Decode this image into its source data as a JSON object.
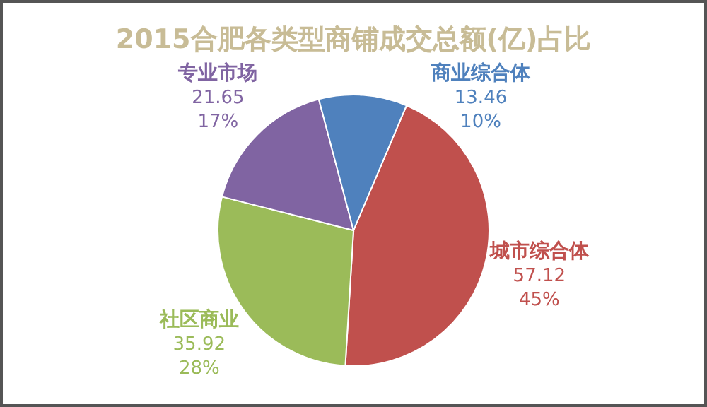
{
  "chart_data": {
    "type": "pie",
    "title": "2015合肥各类型商铺成交总额(亿)占比",
    "categories": [
      "城市综合体",
      "社区商业",
      "专业市场",
      "商业综合体"
    ],
    "values": [
      57.12,
      35.92,
      21.65,
      13.46
    ],
    "value_labels": [
      "57.12\n45%",
      "35.92\n28%",
      "21.65\n17%",
      "13.46\n10%"
    ],
    "colors": [
      "#c0504d",
      "#9bbb59",
      "#8064a2",
      "#4f81bd"
    ]
  }
}
